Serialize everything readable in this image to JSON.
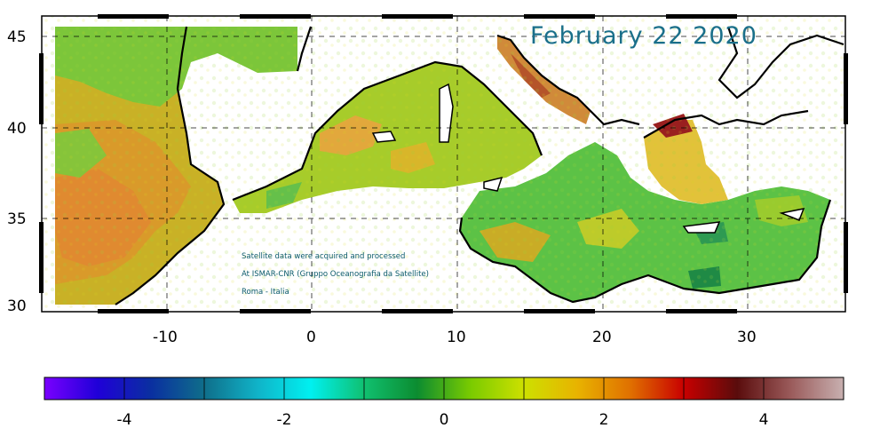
{
  "map": {
    "date": "February 22 2020",
    "credits": [
      "Satellite data were acquired and processed",
      "At ISMAR-CNR (Gruppo Oceanografia da Satellite)",
      "Roma - Italia"
    ],
    "lat_ticks": [
      "45",
      "40",
      "35",
      "30"
    ],
    "lon_ticks": [
      "-10",
      "0",
      "10",
      "20",
      "30"
    ],
    "lat_range": [
      30,
      46
    ],
    "lon_range": [
      -19,
      37
    ],
    "land_color": "#ffffff",
    "coast_color": "#000000"
  },
  "colorbar": {
    "ticks": [
      "-4",
      "-2",
      "0",
      "2",
      "4"
    ],
    "range": [
      -5,
      5
    ],
    "colors": [
      "#7a00ff",
      "#1f00d8",
      "#0a2fa0",
      "#0f6e8a",
      "#10b3c8",
      "#00f0f0",
      "#10c070",
      "#0c8c30",
      "#7acb00",
      "#cde000",
      "#e8b300",
      "#e07000",
      "#c80000",
      "#5a0c0c",
      "#9a5a5a",
      "#c8b0b0"
    ]
  }
}
